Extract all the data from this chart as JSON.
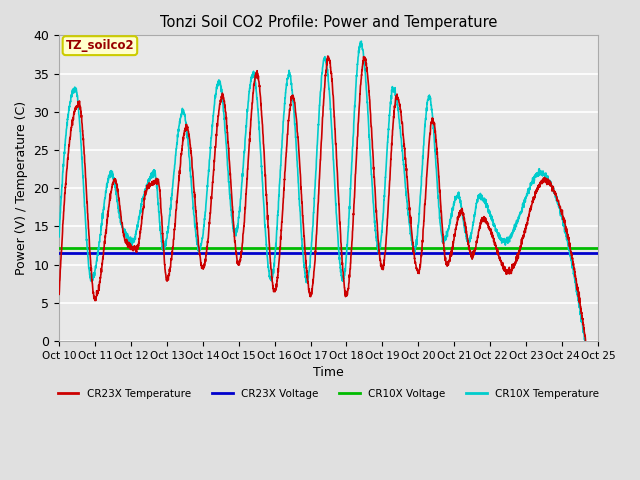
{
  "title": "Tonzi Soil CO2 Profile: Power and Temperature",
  "xlabel": "Time",
  "ylabel": "Power (V) / Temperature (C)",
  "ylim": [
    0,
    40
  ],
  "yticks": [
    0,
    5,
    10,
    15,
    20,
    25,
    30,
    35,
    40
  ],
  "xtick_labels": [
    "Oct 10",
    "Oct 11",
    "Oct 12",
    "Oct 13",
    "Oct 14",
    "Oct 15",
    "Oct 16",
    "Oct 17",
    "Oct 18",
    "Oct 19",
    "Oct 20",
    "Oct 21",
    "Oct 22",
    "Oct 23",
    "Oct 24",
    "Oct 25"
  ],
  "cr23x_voltage": 11.5,
  "cr10x_voltage": 12.1,
  "voltage_color_cr23x": "#0000cc",
  "voltage_color_cr10x": "#00bb00",
  "temp_color_cr23x": "#cc0000",
  "temp_color_cr10x": "#00cccc",
  "fig_bg": "#e0e0e0",
  "plot_bg": "#e8e8e8",
  "annotation_text": "TZ_soilco2",
  "annotation_bg": "#ffffcc",
  "annotation_border": "#cccc00",
  "annotation_text_color": "#990000",
  "peak_days_r": [
    0.55,
    1.55,
    2.45,
    2.75,
    3.55,
    4.55,
    5.5,
    6.5,
    7.5,
    8.5,
    9.4,
    10.4,
    11.2,
    11.8,
    13.5
  ],
  "peak_vals_r": [
    31,
    21,
    20,
    21,
    28,
    32,
    35,
    32,
    37,
    37,
    32,
    29,
    17,
    16,
    21
  ],
  "trough_days_r": [
    0.0,
    1.0,
    1.85,
    2.15,
    3.0,
    4.0,
    5.0,
    6.0,
    7.0,
    8.0,
    9.0,
    10.0,
    10.8,
    11.5,
    12.5,
    14.5
  ],
  "trough_vals_r": [
    6,
    5.5,
    13,
    12,
    8,
    9.5,
    10,
    6.5,
    6,
    6,
    9.5,
    9,
    10,
    11,
    9,
    5
  ],
  "peak_days_c": [
    0.45,
    1.45,
    2.35,
    2.65,
    3.45,
    4.45,
    5.4,
    6.4,
    7.4,
    8.4,
    9.3,
    10.3,
    11.1,
    11.7,
    13.4
  ],
  "peak_vals_c": [
    33,
    22,
    19,
    22,
    30,
    34,
    35,
    35,
    37,
    39,
    33,
    32,
    19,
    19,
    22
  ],
  "trough_days_c": [
    0.0,
    0.9,
    1.75,
    2.05,
    2.9,
    3.9,
    4.9,
    5.9,
    6.9,
    7.9,
    8.9,
    9.9,
    10.7,
    11.4,
    12.4,
    14.4
  ],
  "trough_vals_c": [
    14,
    8,
    15,
    13,
    12,
    12,
    14,
    8,
    8,
    8,
    12,
    12,
    13,
    13,
    13,
    7
  ]
}
